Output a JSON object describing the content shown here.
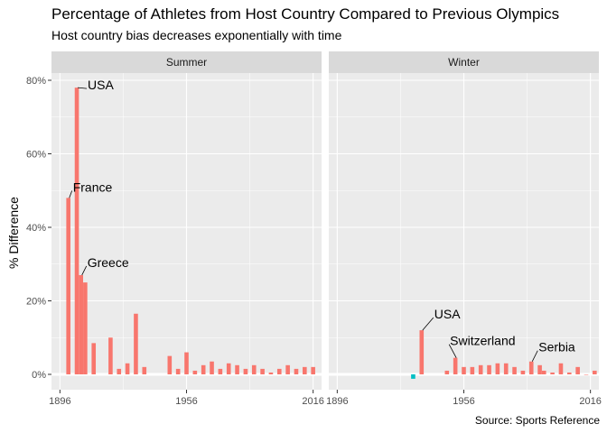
{
  "chart_data": {
    "type": "bar",
    "title": "Percentage of Athletes from Host Country Compared to Previous Olympics",
    "subtitle": "Host country bias decreases exponentially with time",
    "caption": "Source: Sports Reference",
    "ylabel": "% Difference",
    "xlabel": "",
    "ylim": [
      -3,
      83
    ],
    "xlim": [
      1892,
      2020
    ],
    "x_ticks": [
      1896,
      1956,
      2016
    ],
    "x_tick_labels": [
      "1896",
      "1956",
      "2016"
    ],
    "y_ticks": [
      0,
      20,
      40,
      60,
      80
    ],
    "y_tick_labels": [
      "0%",
      "20%",
      "40%",
      "60%",
      "80%"
    ],
    "grid": true,
    "legend": "none",
    "colors": {
      "positive": "#F8766D",
      "negative": "#00BFC4",
      "panel": "#EBEBEB",
      "strip": "#D9D9D9",
      "grid": "#FFFFFF"
    },
    "panels": [
      {
        "name": "Summer",
        "bars": [
          {
            "year": 1900,
            "value": 48
          },
          {
            "year": 1904,
            "value": 78
          },
          {
            "year": 1906,
            "value": 27
          },
          {
            "year": 1908,
            "value": 25
          },
          {
            "year": 1912,
            "value": 8.5
          },
          {
            "year": 1920,
            "value": 10
          },
          {
            "year": 1924,
            "value": 1.5
          },
          {
            "year": 1928,
            "value": 3
          },
          {
            "year": 1932,
            "value": 16.5
          },
          {
            "year": 1936,
            "value": 2
          },
          {
            "year": 1948,
            "value": 5
          },
          {
            "year": 1952,
            "value": 1.5
          },
          {
            "year": 1956,
            "value": 6
          },
          {
            "year": 1960,
            "value": 1
          },
          {
            "year": 1964,
            "value": 2.5
          },
          {
            "year": 1968,
            "value": 3.5
          },
          {
            "year": 1972,
            "value": 1.5
          },
          {
            "year": 1976,
            "value": 3
          },
          {
            "year": 1980,
            "value": 2.5
          },
          {
            "year": 1984,
            "value": 1.5
          },
          {
            "year": 1988,
            "value": 2.5
          },
          {
            "year": 1992,
            "value": 1.5
          },
          {
            "year": 1996,
            "value": 0.5
          },
          {
            "year": 2000,
            "value": 1.5
          },
          {
            "year": 2004,
            "value": 2.5
          },
          {
            "year": 2008,
            "value": 1.5
          },
          {
            "year": 2012,
            "value": 2.0
          },
          {
            "year": 2016,
            "value": 2.0
          }
        ],
        "annotations": [
          {
            "label": "USA",
            "year": 1904,
            "value": 78
          },
          {
            "label": "France",
            "year": 1900,
            "value": 48
          },
          {
            "label": "Greece",
            "year": 1906,
            "value": 27
          }
        ]
      },
      {
        "name": "Winter",
        "bars": [
          {
            "year": 1932,
            "value": -1.2
          },
          {
            "year": 1936,
            "value": 12
          },
          {
            "year": 1948,
            "value": 1
          },
          {
            "year": 1952,
            "value": 4.5
          },
          {
            "year": 1956,
            "value": 2
          },
          {
            "year": 1960,
            "value": 2
          },
          {
            "year": 1964,
            "value": 2.5
          },
          {
            "year": 1968,
            "value": 2.5
          },
          {
            "year": 1972,
            "value": 3
          },
          {
            "year": 1976,
            "value": 3
          },
          {
            "year": 1980,
            "value": 2
          },
          {
            "year": 1984,
            "value": 1
          },
          {
            "year": 1988,
            "value": 3.5
          },
          {
            "year": 1992,
            "value": 2.5
          },
          {
            "year": 1994,
            "value": 1
          },
          {
            "year": 1998,
            "value": 0.5
          },
          {
            "year": 2002,
            "value": 3
          },
          {
            "year": 2006,
            "value": 0.5
          },
          {
            "year": 2010,
            "value": 2
          },
          {
            "year": 2014,
            "value": 0
          },
          {
            "year": 2018,
            "value": 1
          }
        ],
        "annotations": [
          {
            "label": "USA",
            "year": 1936,
            "value": 12
          },
          {
            "label": "Switzerland",
            "year": 1952,
            "value": 4.5
          },
          {
            "label": "Serbia",
            "year": 1988,
            "value": 3.5
          }
        ]
      }
    ]
  }
}
